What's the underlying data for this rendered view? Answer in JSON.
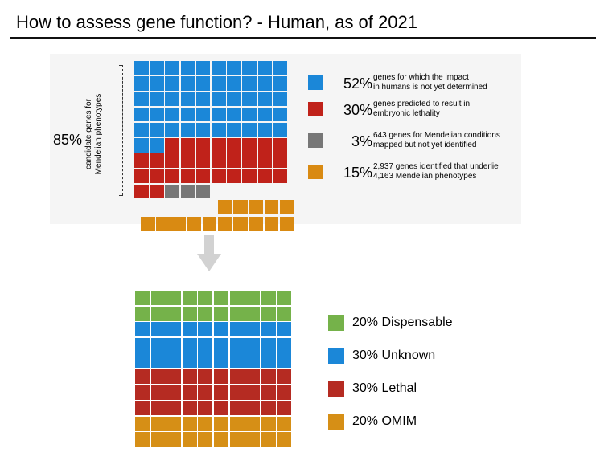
{
  "title": "How to assess gene function? - Human, as of 2021",
  "colors": {
    "blue": "#1b87d8",
    "red": "#c0221a",
    "gray": "#777777",
    "orange": "#d98a12",
    "green": "#75b24a",
    "blue2": "#1b87d8",
    "red2": "#b52b22",
    "orange2": "#d68f16"
  },
  "top": {
    "percent_label": "85%",
    "vertical_label": [
      "candidate genes for",
      "Mendelian phenotypes"
    ],
    "legend": [
      {
        "key": "blue",
        "percent": "52%",
        "desc": [
          "genes for which the impact",
          "in humans is not yet determined"
        ]
      },
      {
        "key": "red",
        "percent": "30%",
        "desc": [
          "genes predicted to result in",
          "embryonic lethality"
        ]
      },
      {
        "key": "gray",
        "percent": "3%",
        "desc": [
          "643 genes for Mendelian conditions",
          "mapped but not yet identified"
        ]
      },
      {
        "key": "orange",
        "percent": "15%",
        "desc": [
          "2,937 genes identified that underlie",
          "4,163 Mendelian phenotypes"
        ]
      }
    ],
    "waffle_rows": [
      {
        "cells": [
          "blue",
          "blue",
          "blue",
          "blue",
          "blue",
          "blue",
          "blue",
          "blue",
          "blue",
          "blue"
        ]
      },
      {
        "cells": [
          "blue",
          "blue",
          "blue",
          "blue",
          "blue",
          "blue",
          "blue",
          "blue",
          "blue",
          "blue"
        ]
      },
      {
        "cells": [
          "blue",
          "blue",
          "blue",
          "blue",
          "blue",
          "blue",
          "blue",
          "blue",
          "blue",
          "blue"
        ]
      },
      {
        "cells": [
          "blue",
          "blue",
          "blue",
          "blue",
          "blue",
          "blue",
          "blue",
          "blue",
          "blue",
          "blue"
        ]
      },
      {
        "cells": [
          "blue",
          "blue",
          "blue",
          "blue",
          "blue",
          "blue",
          "blue",
          "blue",
          "blue",
          "blue"
        ]
      },
      {
        "cells": [
          "blue",
          "blue",
          "red",
          "red",
          "red",
          "red",
          "red",
          "red",
          "red",
          "red"
        ]
      },
      {
        "cells": [
          "red",
          "red",
          "red",
          "red",
          "red",
          "red",
          "red",
          "red",
          "red",
          "red"
        ]
      },
      {
        "cells": [
          "red",
          "red",
          "red",
          "red",
          "red",
          "red",
          "red",
          "red",
          "red",
          "red"
        ]
      },
      {
        "cells": [
          "red",
          "red",
          "gray",
          "gray",
          "gray"
        ]
      },
      {
        "cells": [
          "orange",
          "orange",
          "orange",
          "orange",
          "orange"
        ]
      },
      {
        "cells": [
          "orange",
          "orange",
          "orange",
          "orange",
          "orange",
          "orange",
          "orange",
          "orange",
          "orange",
          "orange"
        ]
      }
    ]
  },
  "bottom": {
    "legend": [
      {
        "key": "green",
        "label": "20% Dispensable"
      },
      {
        "key": "blue2",
        "label": "30% Unknown"
      },
      {
        "key": "red2",
        "label": "30% Lethal"
      },
      {
        "key": "orange2",
        "label": "20% OMIM"
      }
    ],
    "waffle_rows": [
      {
        "color": "green"
      },
      {
        "color": "green"
      },
      {
        "color": "blue2"
      },
      {
        "color": "blue2"
      },
      {
        "color": "blue2"
      },
      {
        "color": "red2"
      },
      {
        "color": "red2"
      },
      {
        "color": "red2"
      },
      {
        "color": "orange2"
      },
      {
        "color": "orange2"
      }
    ]
  }
}
